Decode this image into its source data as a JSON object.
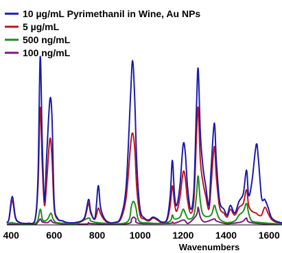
{
  "chart_data": {
    "type": "line",
    "title": "",
    "xlabel": "Wavenumbers",
    "ylabel": "",
    "xlim": [
      380,
      1660
    ],
    "ylim": [
      0,
      1.08
    ],
    "xticks": [
      400,
      600,
      800,
      1000,
      1200,
      1400,
      1600
    ],
    "grid": false,
    "legend_position": "top-left",
    "series": [
      {
        "name": "10 µg/mL Pyrimethanil in Wine, Au NPs",
        "color": "#1a1aaa",
        "points": [
          [
            380,
            0.012
          ],
          [
            390,
            0.03
          ],
          [
            405,
            0.145
          ],
          [
            420,
            0.04
          ],
          [
            440,
            0.012
          ],
          [
            480,
            0.008
          ],
          [
            510,
            0.02
          ],
          [
            525,
            0.25
          ],
          [
            535,
            0.86
          ],
          [
            545,
            0.4
          ],
          [
            555,
            0.12
          ],
          [
            565,
            0.35
          ],
          [
            580,
            0.64
          ],
          [
            590,
            0.55
          ],
          [
            600,
            0.12
          ],
          [
            615,
            0.035
          ],
          [
            640,
            0.02
          ],
          [
            660,
            0.012
          ],
          [
            700,
            0.012
          ],
          [
            740,
            0.035
          ],
          [
            760,
            0.13
          ],
          [
            770,
            0.07
          ],
          [
            790,
            0.035
          ],
          [
            805,
            0.2
          ],
          [
            815,
            0.095
          ],
          [
            830,
            0.04
          ],
          [
            850,
            0.015
          ],
          [
            880,
            0.012
          ],
          [
            910,
            0.04
          ],
          [
            935,
            0.2
          ],
          [
            955,
            0.65
          ],
          [
            965,
            0.84
          ],
          [
            975,
            0.64
          ],
          [
            985,
            0.3
          ],
          [
            1000,
            0.08
          ],
          [
            1020,
            0.035
          ],
          [
            1040,
            0.025
          ],
          [
            1060,
            0.04
          ],
          [
            1080,
            0.03
          ],
          [
            1100,
            0.015
          ],
          [
            1125,
            0.03
          ],
          [
            1140,
            0.15
          ],
          [
            1150,
            0.33
          ],
          [
            1160,
            0.15
          ],
          [
            1170,
            0.1
          ],
          [
            1185,
            0.2
          ],
          [
            1200,
            0.41
          ],
          [
            1210,
            0.37
          ],
          [
            1220,
            0.2
          ],
          [
            1235,
            0.08
          ],
          [
            1250,
            0.18
          ],
          [
            1262,
            0.6
          ],
          [
            1270,
            0.8
          ],
          [
            1280,
            0.47
          ],
          [
            1292,
            0.3
          ],
          [
            1305,
            0.2
          ],
          [
            1320,
            0.1
          ],
          [
            1330,
            0.28
          ],
          [
            1345,
            0.52
          ],
          [
            1355,
            0.32
          ],
          [
            1370,
            0.12
          ],
          [
            1390,
            0.08
          ],
          [
            1405,
            0.05
          ],
          [
            1420,
            0.1
          ],
          [
            1440,
            0.06
          ],
          [
            1460,
            0.12
          ],
          [
            1480,
            0.16
          ],
          [
            1495,
            0.28
          ],
          [
            1505,
            0.15
          ],
          [
            1520,
            0.22
          ],
          [
            1540,
            0.41
          ],
          [
            1550,
            0.34
          ],
          [
            1565,
            0.14
          ],
          [
            1580,
            0.13
          ],
          [
            1595,
            0.09
          ],
          [
            1610,
            0.04
          ],
          [
            1630,
            0.02
          ],
          [
            1660,
            0.01
          ]
        ]
      },
      {
        "name": "5 µg/mL",
        "color": "#c0141c",
        "points": [
          [
            380,
            0.012
          ],
          [
            390,
            0.03
          ],
          [
            405,
            0.125
          ],
          [
            420,
            0.035
          ],
          [
            440,
            0.012
          ],
          [
            480,
            0.008
          ],
          [
            510,
            0.02
          ],
          [
            525,
            0.2
          ],
          [
            535,
            0.6
          ],
          [
            545,
            0.3
          ],
          [
            555,
            0.1
          ],
          [
            565,
            0.22
          ],
          [
            580,
            0.44
          ],
          [
            590,
            0.34
          ],
          [
            600,
            0.09
          ],
          [
            615,
            0.03
          ],
          [
            640,
            0.02
          ],
          [
            660,
            0.012
          ],
          [
            700,
            0.012
          ],
          [
            740,
            0.03
          ],
          [
            760,
            0.11
          ],
          [
            770,
            0.06
          ],
          [
            790,
            0.03
          ],
          [
            805,
            0.085
          ],
          [
            815,
            0.06
          ],
          [
            830,
            0.03
          ],
          [
            850,
            0.012
          ],
          [
            880,
            0.012
          ],
          [
            910,
            0.03
          ],
          [
            935,
            0.14
          ],
          [
            955,
            0.4
          ],
          [
            965,
            0.47
          ],
          [
            975,
            0.39
          ],
          [
            985,
            0.18
          ],
          [
            1000,
            0.05
          ],
          [
            1020,
            0.03
          ],
          [
            1040,
            0.02
          ],
          [
            1060,
            0.035
          ],
          [
            1080,
            0.025
          ],
          [
            1100,
            0.012
          ],
          [
            1125,
            0.025
          ],
          [
            1140,
            0.1
          ],
          [
            1150,
            0.2
          ],
          [
            1160,
            0.11
          ],
          [
            1170,
            0.07
          ],
          [
            1185,
            0.14
          ],
          [
            1200,
            0.27
          ],
          [
            1210,
            0.24
          ],
          [
            1220,
            0.13
          ],
          [
            1235,
            0.06
          ],
          [
            1250,
            0.13
          ],
          [
            1262,
            0.45
          ],
          [
            1270,
            0.6
          ],
          [
            1280,
            0.33
          ],
          [
            1292,
            0.22
          ],
          [
            1305,
            0.15
          ],
          [
            1320,
            0.08
          ],
          [
            1330,
            0.2
          ],
          [
            1345,
            0.4
          ],
          [
            1355,
            0.24
          ],
          [
            1370,
            0.09
          ],
          [
            1390,
            0.06
          ],
          [
            1405,
            0.04
          ],
          [
            1420,
            0.08
          ],
          [
            1440,
            0.05
          ],
          [
            1460,
            0.09
          ],
          [
            1480,
            0.11
          ],
          [
            1495,
            0.18
          ],
          [
            1505,
            0.1
          ],
          [
            1520,
            0.07
          ],
          [
            1540,
            0.06
          ],
          [
            1550,
            0.05
          ],
          [
            1565,
            0.05
          ],
          [
            1580,
            0.09
          ],
          [
            1595,
            0.06
          ],
          [
            1610,
            0.03
          ],
          [
            1630,
            0.015
          ],
          [
            1660,
            0.01
          ]
        ]
      },
      {
        "name": "500 ng/mL",
        "color": "#1c8c1c",
        "points": [
          [
            380,
            0.005
          ],
          [
            400,
            0.012
          ],
          [
            420,
            0.008
          ],
          [
            480,
            0.005
          ],
          [
            520,
            0.015
          ],
          [
            535,
            0.08
          ],
          [
            545,
            0.03
          ],
          [
            555,
            0.02
          ],
          [
            570,
            0.03
          ],
          [
            585,
            0.06
          ],
          [
            595,
            0.03
          ],
          [
            610,
            0.012
          ],
          [
            650,
            0.008
          ],
          [
            700,
            0.005
          ],
          [
            760,
            0.035
          ],
          [
            770,
            0.02
          ],
          [
            800,
            0.012
          ],
          [
            850,
            0.008
          ],
          [
            940,
            0.015
          ],
          [
            960,
            0.1
          ],
          [
            970,
            0.12
          ],
          [
            980,
            0.09
          ],
          [
            995,
            0.02
          ],
          [
            1040,
            0.01
          ],
          [
            1100,
            0.008
          ],
          [
            1140,
            0.02
          ],
          [
            1150,
            0.05
          ],
          [
            1160,
            0.03
          ],
          [
            1185,
            0.04
          ],
          [
            1200,
            0.08
          ],
          [
            1210,
            0.06
          ],
          [
            1225,
            0.03
          ],
          [
            1250,
            0.05
          ],
          [
            1262,
            0.15
          ],
          [
            1270,
            0.25
          ],
          [
            1280,
            0.12
          ],
          [
            1295,
            0.05
          ],
          [
            1330,
            0.05
          ],
          [
            1345,
            0.1
          ],
          [
            1355,
            0.07
          ],
          [
            1370,
            0.03
          ],
          [
            1400,
            0.012
          ],
          [
            1440,
            0.02
          ],
          [
            1460,
            0.05
          ],
          [
            1480,
            0.07
          ],
          [
            1495,
            0.11
          ],
          [
            1505,
            0.06
          ],
          [
            1520,
            0.02
          ],
          [
            1560,
            0.012
          ],
          [
            1600,
            0.008
          ],
          [
            1660,
            0.005
          ]
        ]
      },
      {
        "name": "100 ng/mL",
        "color": "#7a1a7a",
        "points": [
          [
            380,
            0.004
          ],
          [
            500,
            0.004
          ],
          [
            520,
            0.008
          ],
          [
            535,
            0.03
          ],
          [
            545,
            0.015
          ],
          [
            570,
            0.012
          ],
          [
            585,
            0.025
          ],
          [
            595,
            0.012
          ],
          [
            640,
            0.005
          ],
          [
            750,
            0.005
          ],
          [
            760,
            0.012
          ],
          [
            780,
            0.006
          ],
          [
            940,
            0.006
          ],
          [
            960,
            0.03
          ],
          [
            970,
            0.04
          ],
          [
            980,
            0.03
          ],
          [
            995,
            0.008
          ],
          [
            1140,
            0.008
          ],
          [
            1150,
            0.015
          ],
          [
            1160,
            0.008
          ],
          [
            1200,
            0.025
          ],
          [
            1210,
            0.02
          ],
          [
            1225,
            0.008
          ],
          [
            1262,
            0.05
          ],
          [
            1270,
            0.09
          ],
          [
            1280,
            0.04
          ],
          [
            1300,
            0.015
          ],
          [
            1345,
            0.03
          ],
          [
            1355,
            0.02
          ],
          [
            1400,
            0.006
          ],
          [
            1460,
            0.012
          ],
          [
            1480,
            0.02
          ],
          [
            1495,
            0.035
          ],
          [
            1505,
            0.015
          ],
          [
            1560,
            0.006
          ],
          [
            1660,
            0.004
          ]
        ]
      }
    ]
  }
}
